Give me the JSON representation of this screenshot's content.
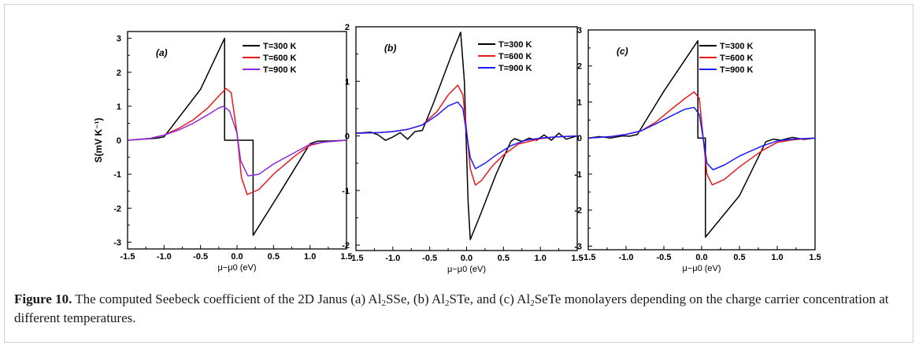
{
  "figure": {
    "caption": {
      "label": "Figure 10.",
      "part1": " The computed Seebeck coefficient of the 2D Janus (a) Al",
      "sub1": "2",
      "part2": "SSe, (b) Al",
      "sub2": "2",
      "part3": "STe, and (c) Al",
      "sub3": "2",
      "part4": "SeTe monolayers depending on the charge carrier concentration at different temperatures."
    }
  },
  "chart_data": [
    {
      "type": "line",
      "panel_label": "(a)",
      "xlabel": "μ−μ0 (eV)",
      "ylabel": "S(mV K⁻¹)",
      "xlim": [
        -1.5,
        1.5
      ],
      "ylim": [
        -3.2,
        3.2
      ],
      "x_ticks": [
        "-1.5",
        "-1.0",
        "-0.5",
        "0.0",
        "0.5",
        "1.0",
        "1.5"
      ],
      "y_ticks": [
        "-3",
        "-2",
        "-1",
        "0",
        "1",
        "2",
        "3"
      ],
      "y_tick_values": [
        -3,
        -2,
        -1,
        0,
        1,
        2,
        3
      ],
      "legend_position": "top-right",
      "series": [
        {
          "name": "T=300 K",
          "color": "#000000",
          "x": [
            -1.5,
            -1.3,
            -1.1,
            -1.0,
            -0.5,
            -0.17,
            -0.17,
            0.22,
            0.22,
            0.6,
            1.0,
            1.1,
            1.3,
            1.5
          ],
          "y": [
            0.0,
            0.03,
            0.06,
            0.1,
            1.5,
            3.0,
            0.0,
            0.0,
            -2.8,
            -1.5,
            -0.1,
            -0.03,
            -0.02,
            0.0
          ]
        },
        {
          "name": "T=600 K",
          "color": "#e8191c",
          "x": [
            -1.5,
            -1.2,
            -1.0,
            -0.8,
            -0.6,
            -0.4,
            -0.25,
            -0.15,
            -0.08,
            0.0,
            0.06,
            0.14,
            0.3,
            0.5,
            0.8,
            1.0,
            1.2,
            1.5
          ],
          "y": [
            0.0,
            0.05,
            0.15,
            0.35,
            0.6,
            0.95,
            1.3,
            1.52,
            1.4,
            0.2,
            -1.1,
            -1.6,
            -1.45,
            -1.0,
            -0.45,
            -0.15,
            -0.05,
            0.0
          ]
        },
        {
          "name": "T=900 K",
          "color": "#8a2be2",
          "x": [
            -1.5,
            -1.2,
            -1.0,
            -0.8,
            -0.6,
            -0.4,
            -0.25,
            -0.18,
            -0.1,
            0.0,
            0.05,
            0.15,
            0.3,
            0.5,
            0.8,
            1.0,
            1.2,
            1.5
          ],
          "y": [
            0.0,
            0.05,
            0.15,
            0.3,
            0.5,
            0.75,
            0.95,
            1.0,
            0.85,
            0.2,
            -0.6,
            -1.05,
            -1.0,
            -0.7,
            -0.35,
            -0.12,
            -0.05,
            0.0
          ]
        }
      ]
    },
    {
      "type": "line",
      "panel_label": "(b)",
      "xlabel": "μ−μ0 (eV)",
      "ylabel": "",
      "xlim": [
        -1.5,
        1.5
      ],
      "ylim": [
        -2.1,
        2.0
      ],
      "x_ticks": [
        "-1.5",
        "-1.0",
        "-0.5",
        "0.0",
        "0.5",
        "1.0",
        "1.5"
      ],
      "y_ticks": [
        "-2",
        "-1",
        "0",
        "1",
        "2"
      ],
      "y_tick_values": [
        -2,
        -1,
        0,
        1,
        2
      ],
      "legend_position": "top-right",
      "series": [
        {
          "name": "T=300 K",
          "color": "#000000",
          "x": [
            -1.5,
            -1.3,
            -1.2,
            -1.1,
            -1.0,
            -0.9,
            -0.8,
            -0.7,
            -0.6,
            -0.45,
            -0.2,
            -0.08,
            -0.03,
            0.02,
            0.05,
            0.2,
            0.4,
            0.6,
            0.65,
            0.75,
            0.85,
            0.95,
            1.05,
            1.15,
            1.25,
            1.35,
            1.5
          ],
          "y": [
            0.05,
            0.07,
            0.02,
            -0.08,
            -0.02,
            0.06,
            -0.06,
            0.08,
            0.1,
            0.6,
            1.5,
            1.9,
            1.0,
            -1.2,
            -1.9,
            -1.4,
            -0.7,
            -0.1,
            -0.05,
            -0.1,
            -0.04,
            -0.08,
            0.02,
            -0.08,
            0.05,
            -0.06,
            0.0
          ]
        },
        {
          "name": "T=600 K",
          "color": "#e8191c",
          "x": [
            -1.5,
            -1.2,
            -1.0,
            -0.8,
            -0.6,
            -0.4,
            -0.25,
            -0.12,
            -0.05,
            0.0,
            0.05,
            0.12,
            0.2,
            0.35,
            0.5,
            0.7,
            1.0,
            1.2,
            1.5
          ],
          "y": [
            0.05,
            0.06,
            0.08,
            0.12,
            0.2,
            0.45,
            0.75,
            0.93,
            0.75,
            0.1,
            -0.6,
            -0.9,
            -0.82,
            -0.55,
            -0.35,
            -0.15,
            -0.05,
            -0.02,
            0.0
          ]
        },
        {
          "name": "T=900 K",
          "color": "#1a1aff",
          "x": [
            -1.5,
            -1.2,
            -1.0,
            -0.8,
            -0.6,
            -0.4,
            -0.25,
            -0.12,
            -0.05,
            0.0,
            0.05,
            0.12,
            0.25,
            0.4,
            0.6,
            0.8,
            1.0,
            1.2,
            1.5
          ],
          "y": [
            0.05,
            0.06,
            0.08,
            0.12,
            0.2,
            0.38,
            0.55,
            0.62,
            0.5,
            0.05,
            -0.4,
            -0.6,
            -0.5,
            -0.35,
            -0.18,
            -0.08,
            -0.04,
            -0.02,
            0.0
          ]
        }
      ]
    },
    {
      "type": "line",
      "panel_label": "(c)",
      "xlabel": "μ−μ0 (eV)",
      "ylabel": "",
      "xlim": [
        -1.5,
        1.5
      ],
      "ylim": [
        -3.1,
        3.0
      ],
      "x_ticks": [
        "-1.5",
        "-1.0",
        "-0.5",
        "0.0",
        "0.5",
        "1.0",
        "1.5"
      ],
      "y_ticks": [
        "-3",
        "-2",
        "-1",
        "0",
        "1",
        "2",
        "3"
      ],
      "y_tick_values": [
        -3,
        -2,
        -1,
        0,
        1,
        2,
        3
      ],
      "legend_position": "top-right",
      "series": [
        {
          "name": "T=300 K",
          "color": "#000000",
          "x": [
            -1.5,
            -1.35,
            -1.2,
            -1.05,
            -0.95,
            -0.85,
            -0.5,
            -0.05,
            -0.05,
            0.05,
            0.05,
            0.5,
            0.85,
            0.95,
            1.05,
            1.2,
            1.35,
            1.5
          ],
          "y": [
            0.0,
            0.04,
            0.0,
            0.06,
            0.05,
            0.1,
            1.3,
            2.7,
            0.0,
            0.0,
            -2.75,
            -1.6,
            -0.1,
            -0.03,
            -0.06,
            0.02,
            -0.04,
            0.0
          ]
        },
        {
          "name": "T=600 K",
          "color": "#e8191c",
          "x": [
            -1.5,
            -1.2,
            -1.0,
            -0.8,
            -0.6,
            -0.4,
            -0.22,
            -0.1,
            -0.03,
            0.02,
            0.07,
            0.14,
            0.3,
            0.5,
            0.8,
            1.0,
            1.2,
            1.5
          ],
          "y": [
            0.0,
            0.04,
            0.1,
            0.2,
            0.45,
            0.8,
            1.1,
            1.28,
            1.1,
            0.0,
            -1.0,
            -1.3,
            -1.15,
            -0.8,
            -0.35,
            -0.12,
            -0.05,
            0.0
          ]
        },
        {
          "name": "T=900 K",
          "color": "#1a1aff",
          "x": [
            -1.5,
            -1.2,
            -1.0,
            -0.8,
            -0.6,
            -0.4,
            -0.22,
            -0.1,
            -0.03,
            0.02,
            0.07,
            0.15,
            0.3,
            0.5,
            0.8,
            1.0,
            1.2,
            1.5
          ],
          "y": [
            0.0,
            0.04,
            0.1,
            0.2,
            0.4,
            0.62,
            0.8,
            0.85,
            0.65,
            0.0,
            -0.7,
            -0.88,
            -0.75,
            -0.5,
            -0.22,
            -0.08,
            -0.03,
            0.0
          ]
        }
      ]
    }
  ]
}
